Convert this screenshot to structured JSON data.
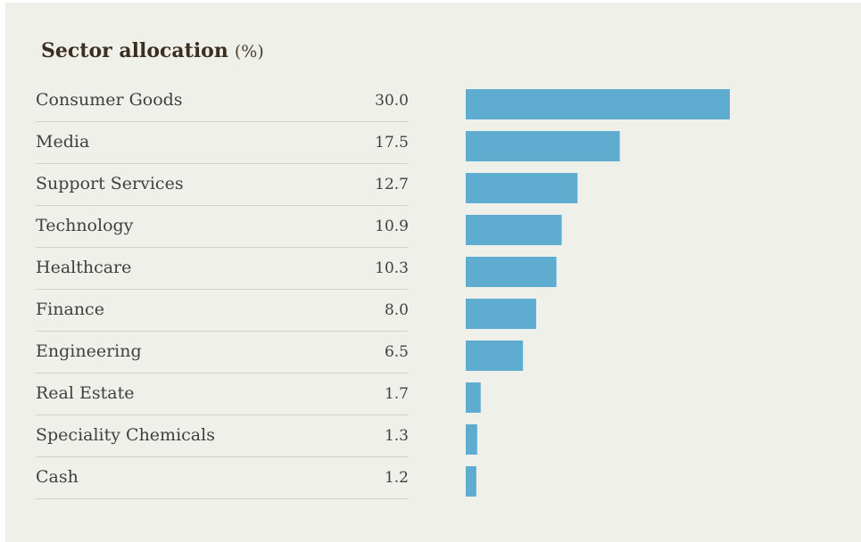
{
  "title": "Sector allocation",
  "title_unit": "(%)",
  "bar_color": "#5eadd1",
  "background_color": "#f0f0eb",
  "chart_data": {
    "type": "bar",
    "orientation": "horizontal",
    "title": "Sector allocation (%)",
    "categories": [
      "Consumer Goods",
      "Media",
      "Support Services",
      "Technology",
      "Healthcare",
      "Finance",
      "Engineering",
      "Real Estate",
      "Speciality Chemicals",
      "Cash"
    ],
    "values": [
      30.0,
      17.5,
      12.7,
      10.9,
      10.3,
      8.0,
      6.5,
      1.7,
      1.3,
      1.2
    ],
    "value_labels": [
      "30.0",
      "17.5",
      "12.7",
      "10.9",
      "10.3",
      "8.0",
      "6.5",
      "1.7",
      "1.3",
      "1.2"
    ],
    "xlim": [
      0,
      30
    ],
    "grid": false,
    "legend": "none"
  }
}
